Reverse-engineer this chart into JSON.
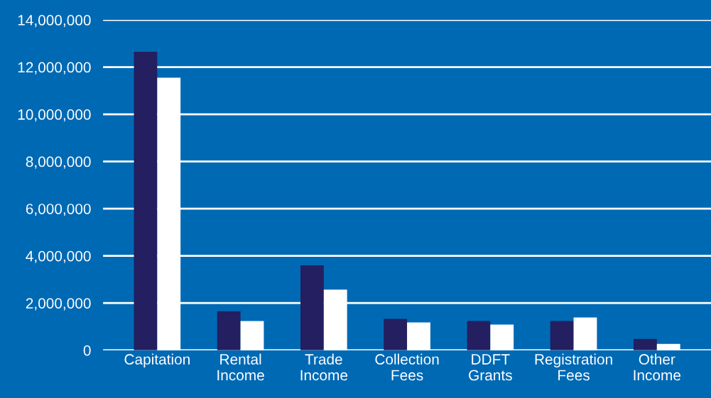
{
  "chart_data": {
    "type": "bar",
    "grid": "y",
    "categories": [
      "Capitation",
      "Rental\nIncome",
      "Trade\nIncome",
      "Collection\nFees",
      "DDFT\nGrants",
      "Registration\nFees",
      "Other\nIncome"
    ],
    "series": [
      {
        "color": "#231f60",
        "values": [
          12650000,
          1650000,
          3600000,
          1330000,
          1240000,
          1240000,
          480000
        ]
      },
      {
        "color": "#ffffff",
        "values": [
          11550000,
          1240000,
          2570000,
          1180000,
          1090000,
          1390000,
          270000
        ]
      }
    ],
    "ylim": [
      0,
      14000000
    ],
    "yticks": [
      {
        "value": 0,
        "label": "0"
      },
      {
        "value": 2000000,
        "label": "2,000,000"
      },
      {
        "value": 4000000,
        "label": "4,000,000"
      },
      {
        "value": 6000000,
        "label": "6,000,000"
      },
      {
        "value": 8000000,
        "label": "8,000,000"
      },
      {
        "value": 10000000,
        "label": "10,000,000"
      },
      {
        "value": 12000000,
        "label": "12,000,000"
      },
      {
        "value": 14000000,
        "label": "14,000,000"
      }
    ]
  }
}
